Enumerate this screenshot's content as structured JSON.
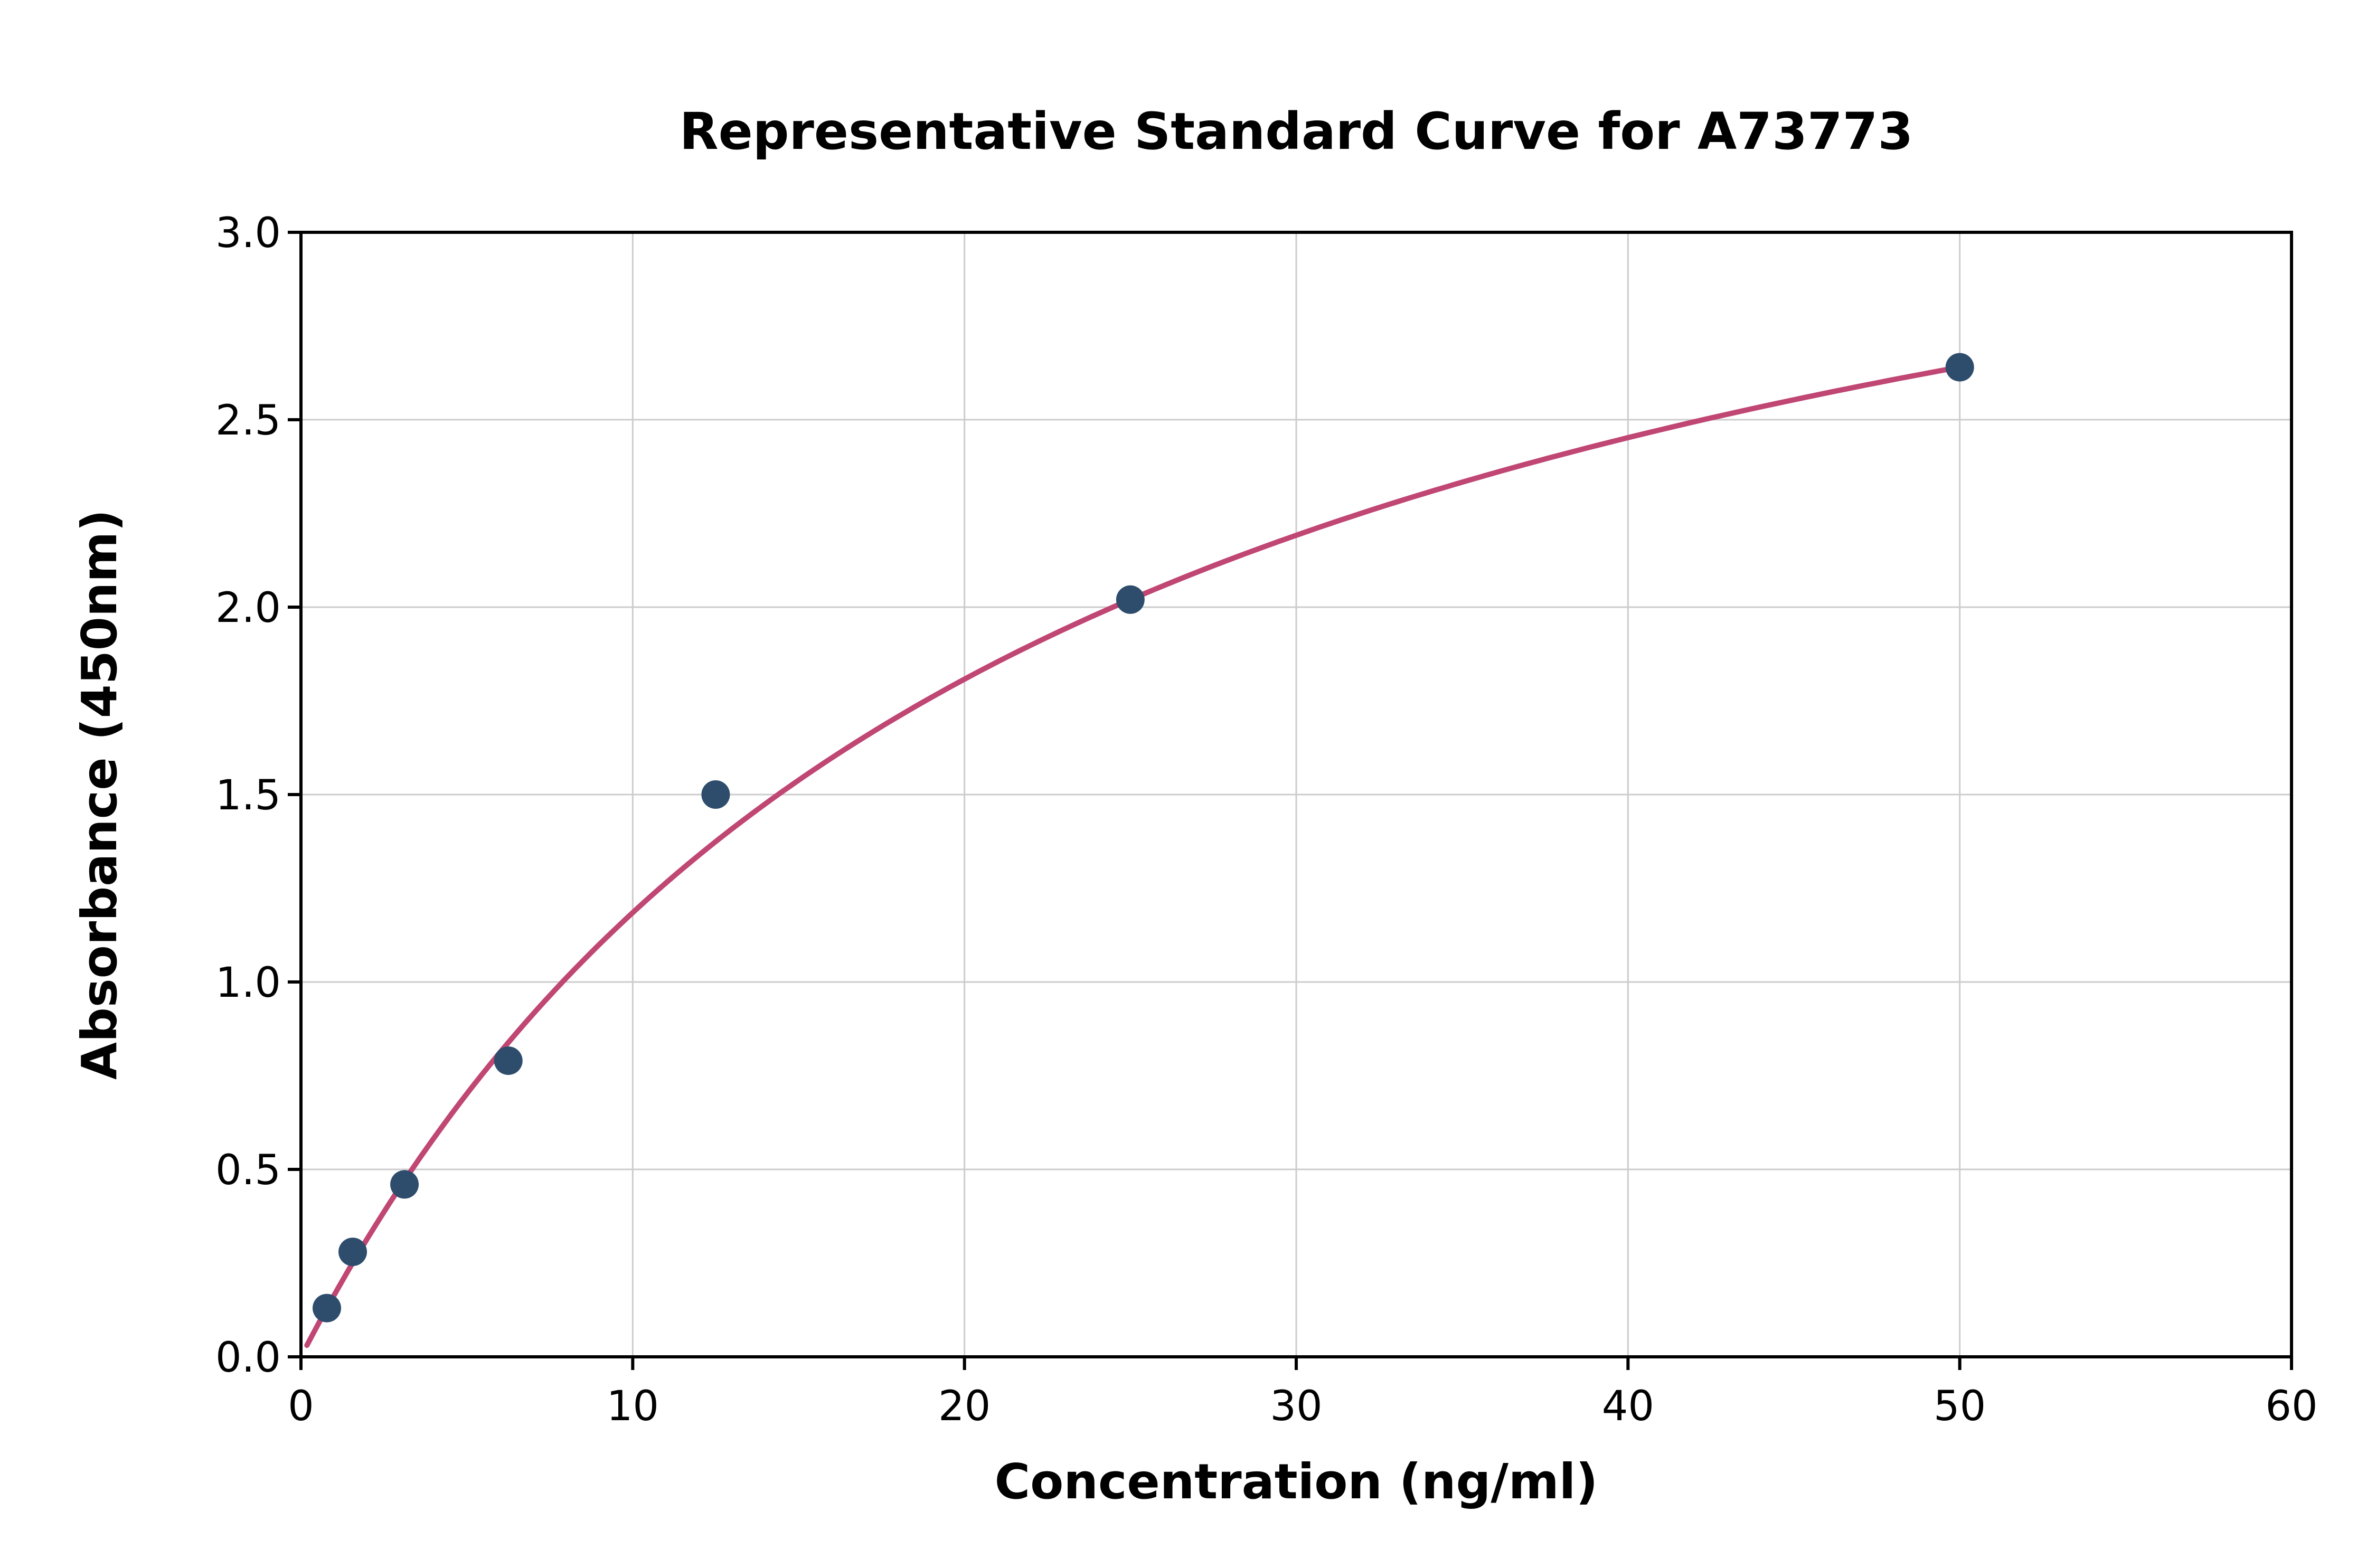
{
  "figure": {
    "background": "#ffffff"
  },
  "chart_data": {
    "type": "scatter",
    "title": "Representative Standard Curve for A73773",
    "xlabel": "Concentration (ng/ml)",
    "ylabel": "Absorbance (450nm)",
    "xlim": [
      0,
      60
    ],
    "ylim": [
      0,
      3.0
    ],
    "x_ticks": [
      0,
      10,
      20,
      30,
      40,
      50,
      60
    ],
    "y_ticks": [
      0.0,
      0.5,
      1.0,
      1.5,
      2.0,
      2.5,
      3.0
    ],
    "grid": true,
    "legend": "none",
    "points": {
      "x": [
        0.78,
        1.56,
        3.12,
        6.25,
        12.5,
        25,
        50
      ],
      "y": [
        0.13,
        0.28,
        0.46,
        0.79,
        1.5,
        2.02,
        2.64
      ]
    },
    "fit_curve": {
      "model": "saturation y = vmax*x/(km+x)",
      "vmax": 3.81,
      "km": 22.15,
      "x_start": 0.18,
      "x_end": 50
    },
    "colors": {
      "curve": "#c04673",
      "points": "#2e4d6d",
      "grid": "#cccccc",
      "axis": "#000000"
    }
  }
}
